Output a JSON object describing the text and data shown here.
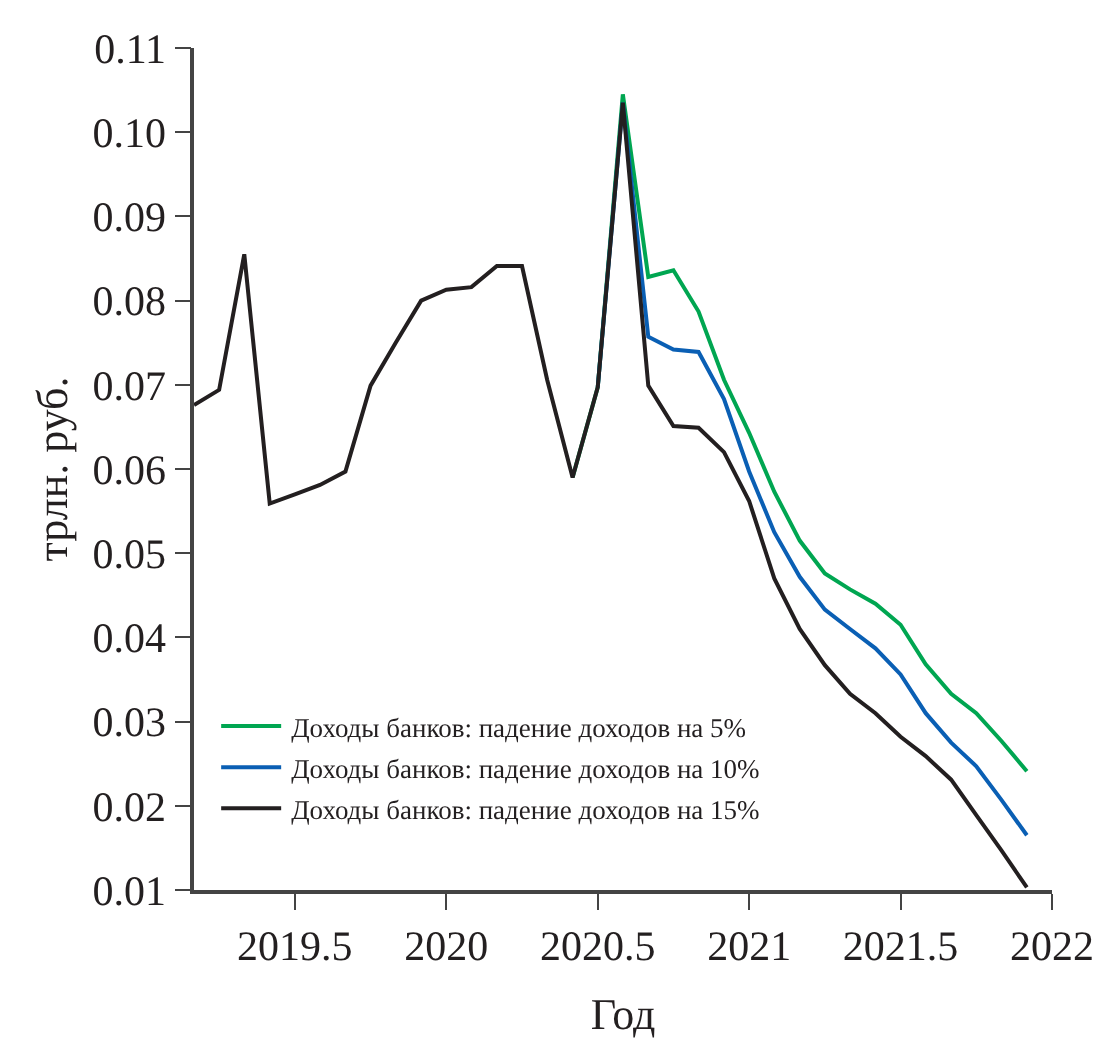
{
  "chart_data": {
    "type": "line",
    "xlabel": "Год",
    "ylabel": "трлн. руб.",
    "x": [
      2019.167,
      2019.25,
      2019.333,
      2019.417,
      2019.5,
      2019.583,
      2019.667,
      2019.75,
      2019.833,
      2019.917,
      2020.0,
      2020.083,
      2020.167,
      2020.25,
      2020.333,
      2020.417,
      2020.5,
      2020.583,
      2020.667,
      2020.75,
      2020.833,
      2020.917,
      2021.0,
      2021.083,
      2021.167,
      2021.25,
      2021.333,
      2021.417,
      2021.5,
      2021.583,
      2021.667,
      2021.75,
      2021.833,
      2021.917
    ],
    "series": [
      {
        "name": "Доходы банков: падение доходов на 5%",
        "color": "#00a651",
        "values": [
          null,
          null,
          null,
          null,
          null,
          null,
          null,
          null,
          null,
          null,
          null,
          null,
          null,
          null,
          null,
          0.059,
          0.0697,
          0.1045,
          0.0828,
          0.0836,
          0.0787,
          0.0706,
          0.0643,
          0.0573,
          0.0515,
          0.0476,
          0.0457,
          0.044,
          0.0415,
          0.0368,
          0.0333,
          0.031,
          0.0277,
          0.0241
        ]
      },
      {
        "name": "Доходы банков: падение доходов на 10%",
        "color": "#0a5fb4",
        "values": [
          null,
          null,
          null,
          null,
          null,
          null,
          null,
          null,
          null,
          null,
          null,
          null,
          null,
          null,
          null,
          null,
          0.0697,
          0.1035,
          0.0757,
          0.0742,
          0.0739,
          0.0683,
          0.0597,
          0.0525,
          0.0472,
          0.0433,
          0.041,
          0.0387,
          0.0356,
          0.031,
          0.0275,
          0.0247,
          0.0207,
          0.0165
        ]
      },
      {
        "name": "Доходы банков: падение доходов на 15%",
        "color": "#231f20",
        "values": [
          0.0676,
          0.0694,
          0.0855,
          0.0559,
          0.057,
          0.0581,
          0.0597,
          0.0699,
          0.075,
          0.08,
          0.0813,
          0.0816,
          0.0841,
          0.0841,
          0.0706,
          0.059,
          0.0697,
          0.1035,
          0.0699,
          0.0651,
          0.0649,
          0.062,
          0.0562,
          0.047,
          0.041,
          0.0367,
          0.0333,
          0.031,
          0.0282,
          0.0259,
          0.0231,
          0.0189,
          0.0147,
          0.0103
        ]
      }
    ],
    "xlim": [
      2019.167,
      2022
    ],
    "xticks": [
      2019.5,
      2020,
      2020.5,
      2021,
      2021.5,
      2022
    ],
    "ylim": [
      0.01,
      0.11
    ],
    "yticks": [
      0.01,
      0.02,
      0.03,
      0.04,
      0.05,
      0.06,
      0.07,
      0.08,
      0.09,
      {
        "value": 0.1,
        "label": "0.10"
      },
      0.11
    ],
    "legend": "bottom left",
    "marker": "none",
    "line_style": "solid"
  }
}
